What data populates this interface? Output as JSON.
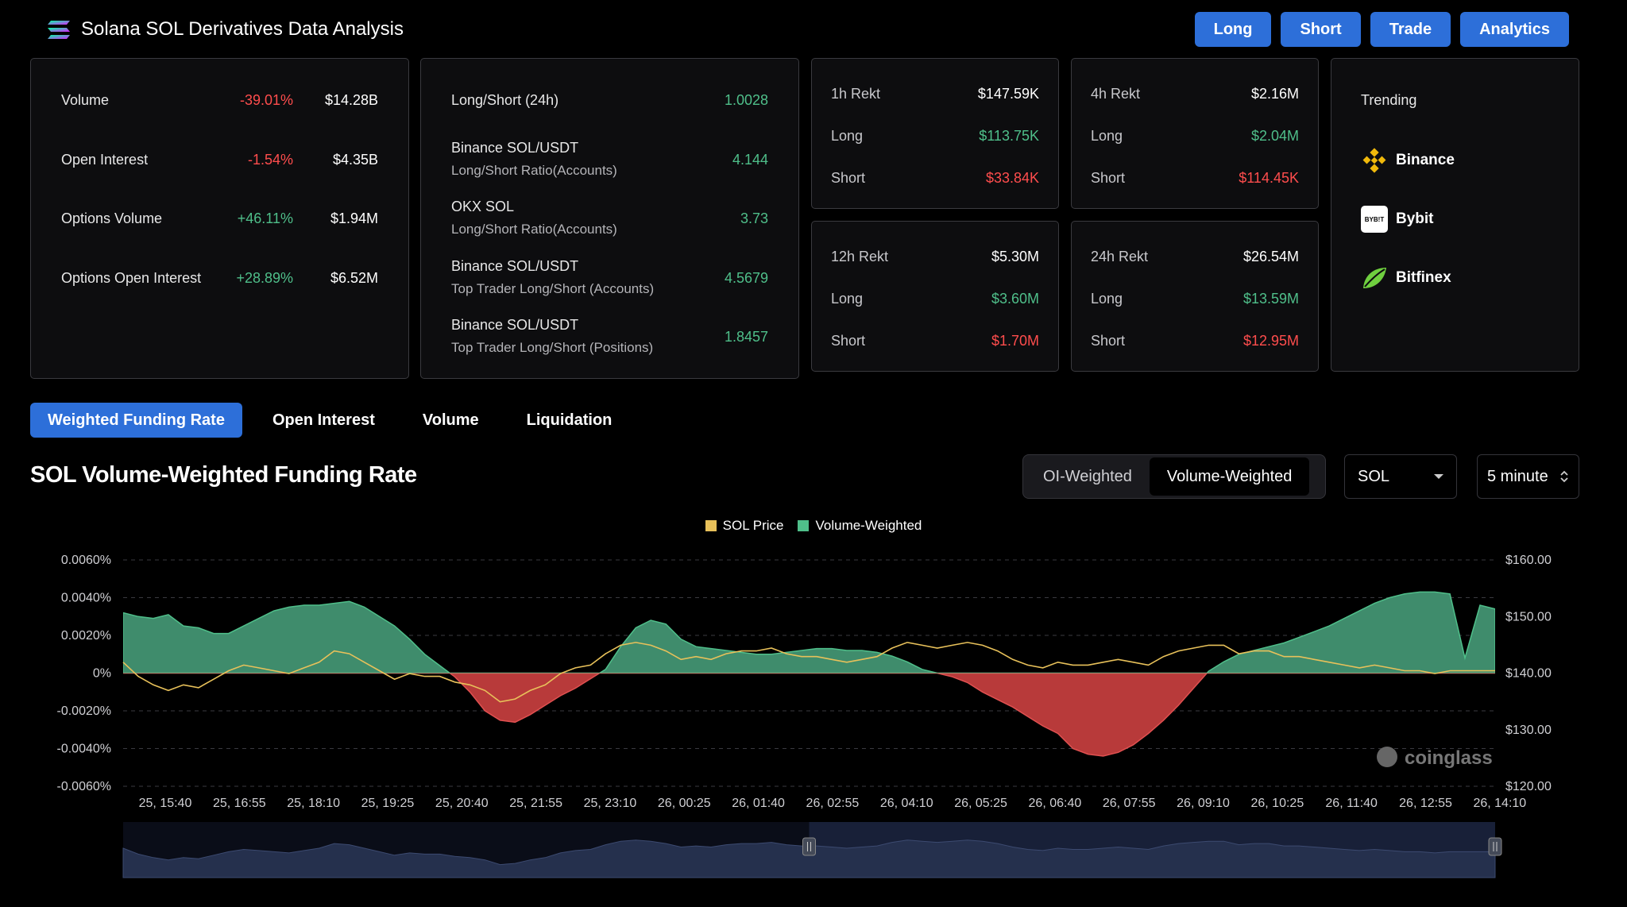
{
  "header": {
    "title": "Solana SOL Derivatives Data Analysis",
    "nav": [
      "Long",
      "Short",
      "Trade",
      "Analytics"
    ]
  },
  "stats": [
    {
      "label": "Volume",
      "change": "-39.01%",
      "value": "$14.28B",
      "dir": "neg"
    },
    {
      "label": "Open Interest",
      "change": "-1.54%",
      "value": "$4.35B",
      "dir": "neg"
    },
    {
      "label": "Options Volume",
      "change": "+46.11%",
      "value": "$1.94M",
      "dir": "pos"
    },
    {
      "label": "Options Open Interest",
      "change": "+28.89%",
      "value": "$6.52M",
      "dir": "pos"
    }
  ],
  "ratios": [
    {
      "label": "Long/Short (24h)",
      "sub": "",
      "value": "1.0028"
    },
    {
      "label": "Binance SOL/USDT",
      "sub": "Long/Short Ratio(Accounts)",
      "value": "4.144"
    },
    {
      "label": "OKX SOL",
      "sub": "Long/Short Ratio(Accounts)",
      "value": "3.73"
    },
    {
      "label": "Binance SOL/USDT",
      "sub": "Top Trader Long/Short (Accounts)",
      "value": "4.5679"
    },
    {
      "label": "Binance SOL/USDT",
      "sub": "Top Trader Long/Short (Positions)",
      "value": "1.8457"
    }
  ],
  "rekt": [
    {
      "title": "1h Rekt",
      "total": "$147.59K",
      "long_label": "Long",
      "long": "$113.75K",
      "short_label": "Short",
      "short": "$33.84K"
    },
    {
      "title": "4h Rekt",
      "total": "$2.16M",
      "long_label": "Long",
      "long": "$2.04M",
      "short_label": "Short",
      "short": "$114.45K"
    },
    {
      "title": "12h Rekt",
      "total": "$5.30M",
      "long_label": "Long",
      "long": "$3.60M",
      "short_label": "Short",
      "short": "$1.70M"
    },
    {
      "title": "24h Rekt",
      "total": "$26.54M",
      "long_label": "Long",
      "long": "$13.59M",
      "short_label": "Short",
      "short": "$12.95M"
    }
  ],
  "trending": {
    "title": "Trending",
    "items": [
      {
        "name": "Binance",
        "icon": "binance-icon"
      },
      {
        "name": "Bybit",
        "icon": "bybit-icon",
        "icon_text": "BYB!T"
      },
      {
        "name": "Bitfinex",
        "icon": "bitfinex-icon"
      }
    ]
  },
  "tabs": [
    "Weighted Funding Rate",
    "Open Interest",
    "Volume",
    "Liquidation"
  ],
  "active_tab": 0,
  "chart_title": "SOL Volume-Weighted Funding Rate",
  "weighting": {
    "options": [
      "OI-Weighted",
      "Volume-Weighted"
    ],
    "active": 1
  },
  "coin_select": "SOL",
  "interval_select": "5 minute",
  "watermark": "coinglass",
  "colors": {
    "accent": "#2d6fd9",
    "positive": "#4fbf8a",
    "negative": "#ff4d4d",
    "area_pos": "#3f8c6c",
    "area_neg": "#b83a3a",
    "price_line": "#e8c15a"
  },
  "chart_data": {
    "type": "area",
    "legend": [
      {
        "name": "SOL Price",
        "color": "#e8c15a"
      },
      {
        "name": "Volume-Weighted",
        "color": "#4fbf8a"
      }
    ],
    "x_ticks": [
      "25, 15:40",
      "25, 16:55",
      "25, 18:10",
      "25, 19:25",
      "25, 20:40",
      "25, 21:55",
      "25, 23:10",
      "26, 00:25",
      "26, 01:40",
      "26, 02:55",
      "26, 04:10",
      "26, 05:25",
      "26, 06:40",
      "26, 07:55",
      "26, 09:10",
      "26, 10:25",
      "26, 11:40",
      "26, 12:55",
      "26, 14:10"
    ],
    "y_left": {
      "ticks": [
        "0.0060%",
        "0.0040%",
        "0.0020%",
        "0%",
        "-0.0020%",
        "-0.0040%",
        "-0.0060%"
      ],
      "range": [
        -0.006,
        0.006
      ],
      "unit": "%"
    },
    "y_right": {
      "ticks": [
        "$160.00",
        "$150.00",
        "$140.00",
        "$130.00",
        "$120.00"
      ],
      "range": [
        120,
        160
      ]
    },
    "funding_rate_pct": [
      0.0032,
      0.003,
      0.0029,
      0.0031,
      0.0025,
      0.0024,
      0.0021,
      0.0021,
      0.0025,
      0.0029,
      0.0033,
      0.0035,
      0.0036,
      0.0036,
      0.0037,
      0.0038,
      0.0035,
      0.003,
      0.0025,
      0.0018,
      0.001,
      0.0004,
      -0.0002,
      -0.001,
      -0.002,
      -0.0025,
      -0.0026,
      -0.0022,
      -0.0017,
      -0.0012,
      -0.0008,
      -0.0003,
      0.0002,
      0.0014,
      0.0024,
      0.0028,
      0.0026,
      0.0018,
      0.0014,
      0.0013,
      0.0012,
      0.0011,
      0.001,
      0.001,
      0.0011,
      0.0012,
      0.0013,
      0.0013,
      0.0012,
      0.0012,
      0.0011,
      0.0009,
      0.0006,
      0.0002,
      0.0,
      -0.0002,
      -0.0005,
      -0.001,
      -0.0014,
      -0.0018,
      -0.0023,
      -0.0028,
      -0.0032,
      -0.004,
      -0.0043,
      -0.0044,
      -0.0042,
      -0.0038,
      -0.0032,
      -0.0025,
      -0.0017,
      -0.0008,
      0.0001,
      0.0006,
      0.001,
      0.0012,
      0.0014,
      0.0016,
      0.0019,
      0.0022,
      0.0025,
      0.0029,
      0.0033,
      0.0037,
      0.004,
      0.0042,
      0.0043,
      0.0043,
      0.0042,
      0.0008,
      0.0036,
      0.0034
    ],
    "sol_price": [
      141.5,
      139,
      137.5,
      136.5,
      137.5,
      137,
      138.5,
      140,
      141,
      140.5,
      140,
      139.5,
      140.5,
      141.5,
      143.5,
      143,
      141.5,
      140,
      138.5,
      139.5,
      139,
      139,
      138,
      137.5,
      136.5,
      134.5,
      135,
      136.5,
      137.5,
      139.5,
      140.5,
      141,
      143,
      144.5,
      145,
      144.5,
      143.5,
      142,
      142.5,
      142,
      143,
      143.5,
      143.5,
      144,
      143,
      142.5,
      142.5,
      142,
      141.5,
      142,
      142.5,
      144,
      145,
      144.5,
      144,
      144.5,
      145,
      144.5,
      143.5,
      142,
      141,
      140.5,
      141.5,
      141,
      141,
      141.5,
      142,
      141.5,
      141,
      142.5,
      143.5,
      144,
      144.5,
      144.5,
      143,
      143.5,
      143.5,
      142.5,
      142.5,
      142,
      141.5,
      141,
      140.5,
      141,
      140.5,
      140,
      140,
      139.5,
      140,
      140,
      140,
      140
    ],
    "window_start_fraction": 0.5
  }
}
